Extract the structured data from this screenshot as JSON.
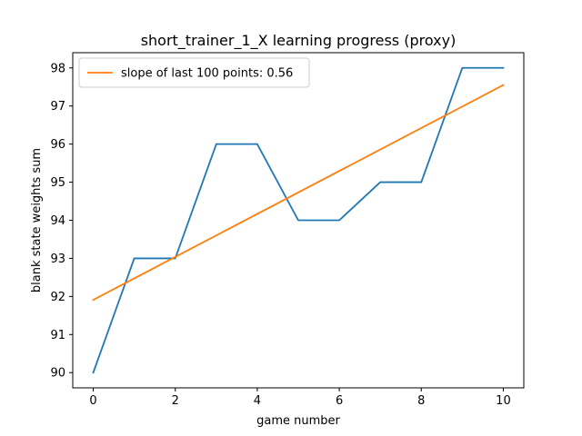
{
  "chart_data": {
    "type": "line",
    "title": "short_trainer_1_X learning progress (proxy)",
    "xlabel": "game number",
    "ylabel": "blank state weights sum",
    "xlim": [
      -0.5,
      10.5
    ],
    "ylim": [
      89.6,
      98.4
    ],
    "xticks": [
      0,
      2,
      4,
      6,
      8,
      10
    ],
    "yticks": [
      90,
      91,
      92,
      93,
      94,
      95,
      96,
      97,
      98
    ],
    "grid": false,
    "legend_position": "upper left",
    "series": [
      {
        "color": "#1f77b4",
        "x": [
          0,
          1,
          2,
          3,
          4,
          5,
          6,
          7,
          8,
          9,
          10
        ],
        "y": [
          90,
          93,
          93,
          96,
          96,
          94,
          94,
          95,
          95,
          98,
          98
        ]
      },
      {
        "name": "slope of last 100 points: 0.56",
        "color": "#ff7f0e",
        "x": [
          0,
          10
        ],
        "y": [
          91.91,
          97.55
        ]
      }
    ]
  }
}
